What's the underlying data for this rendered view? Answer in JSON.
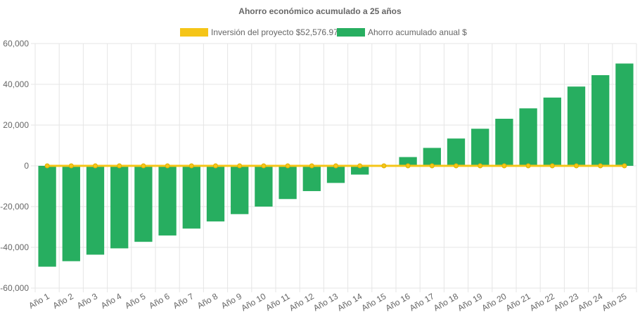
{
  "chart_data": {
    "type": "bar",
    "title": "Ahorro económico acumulado a 25 años",
    "xlabel": "",
    "ylabel": "",
    "ylim": [
      -60000,
      60000
    ],
    "yticks": [
      60000,
      40000,
      20000,
      0,
      -20000,
      -40000,
      -60000
    ],
    "ytick_labels": [
      "60,000",
      "40,000",
      "20,000",
      "0",
      "-20,000",
      "-40,000",
      "-60,000"
    ],
    "grid": true,
    "legend_position": "top",
    "categories": [
      "Año 1",
      "Año 2",
      "Año 3",
      "Año 4",
      "Año 5",
      "Año 6",
      "Año 7",
      "Año 8",
      "Año 9",
      "Año 10",
      "Año 11",
      "Año 12",
      "Año 13",
      "Año 14",
      "Año 15",
      "Año 16",
      "Año 17",
      "Año 18",
      "Año 19",
      "Año 20",
      "Año 21",
      "Año 22",
      "Año 23",
      "Año 24",
      "Año 25"
    ],
    "series": [
      {
        "name": "Inversión del proyecto $52,576.97",
        "type": "line",
        "color": "#f5c518",
        "values": [
          0,
          0,
          0,
          0,
          0,
          0,
          0,
          0,
          0,
          0,
          0,
          0,
          0,
          0,
          0,
          0,
          0,
          0,
          0,
          0,
          0,
          0,
          0,
          0,
          0
        ]
      },
      {
        "name": "Ahorro acumulado anual $",
        "type": "bar",
        "color": "#27ae60",
        "values": [
          -49500,
          -46800,
          -43600,
          -40500,
          -37300,
          -34200,
          -30800,
          -27300,
          -23700,
          -20000,
          -16300,
          -12400,
          -8400,
          -4300,
          0,
          4300,
          8800,
          13400,
          18200,
          23100,
          28200,
          33500,
          38900,
          44500,
          50200
        ]
      }
    ]
  }
}
